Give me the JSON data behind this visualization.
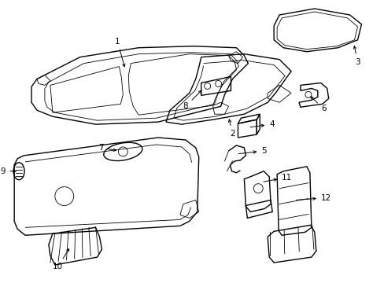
{
  "background_color": "#ffffff",
  "fig_width": 4.89,
  "fig_height": 3.6,
  "dpi": 100,
  "lc": "#000000",
  "lw": 1.0,
  "tlw": 0.6,
  "fs": 7.5
}
